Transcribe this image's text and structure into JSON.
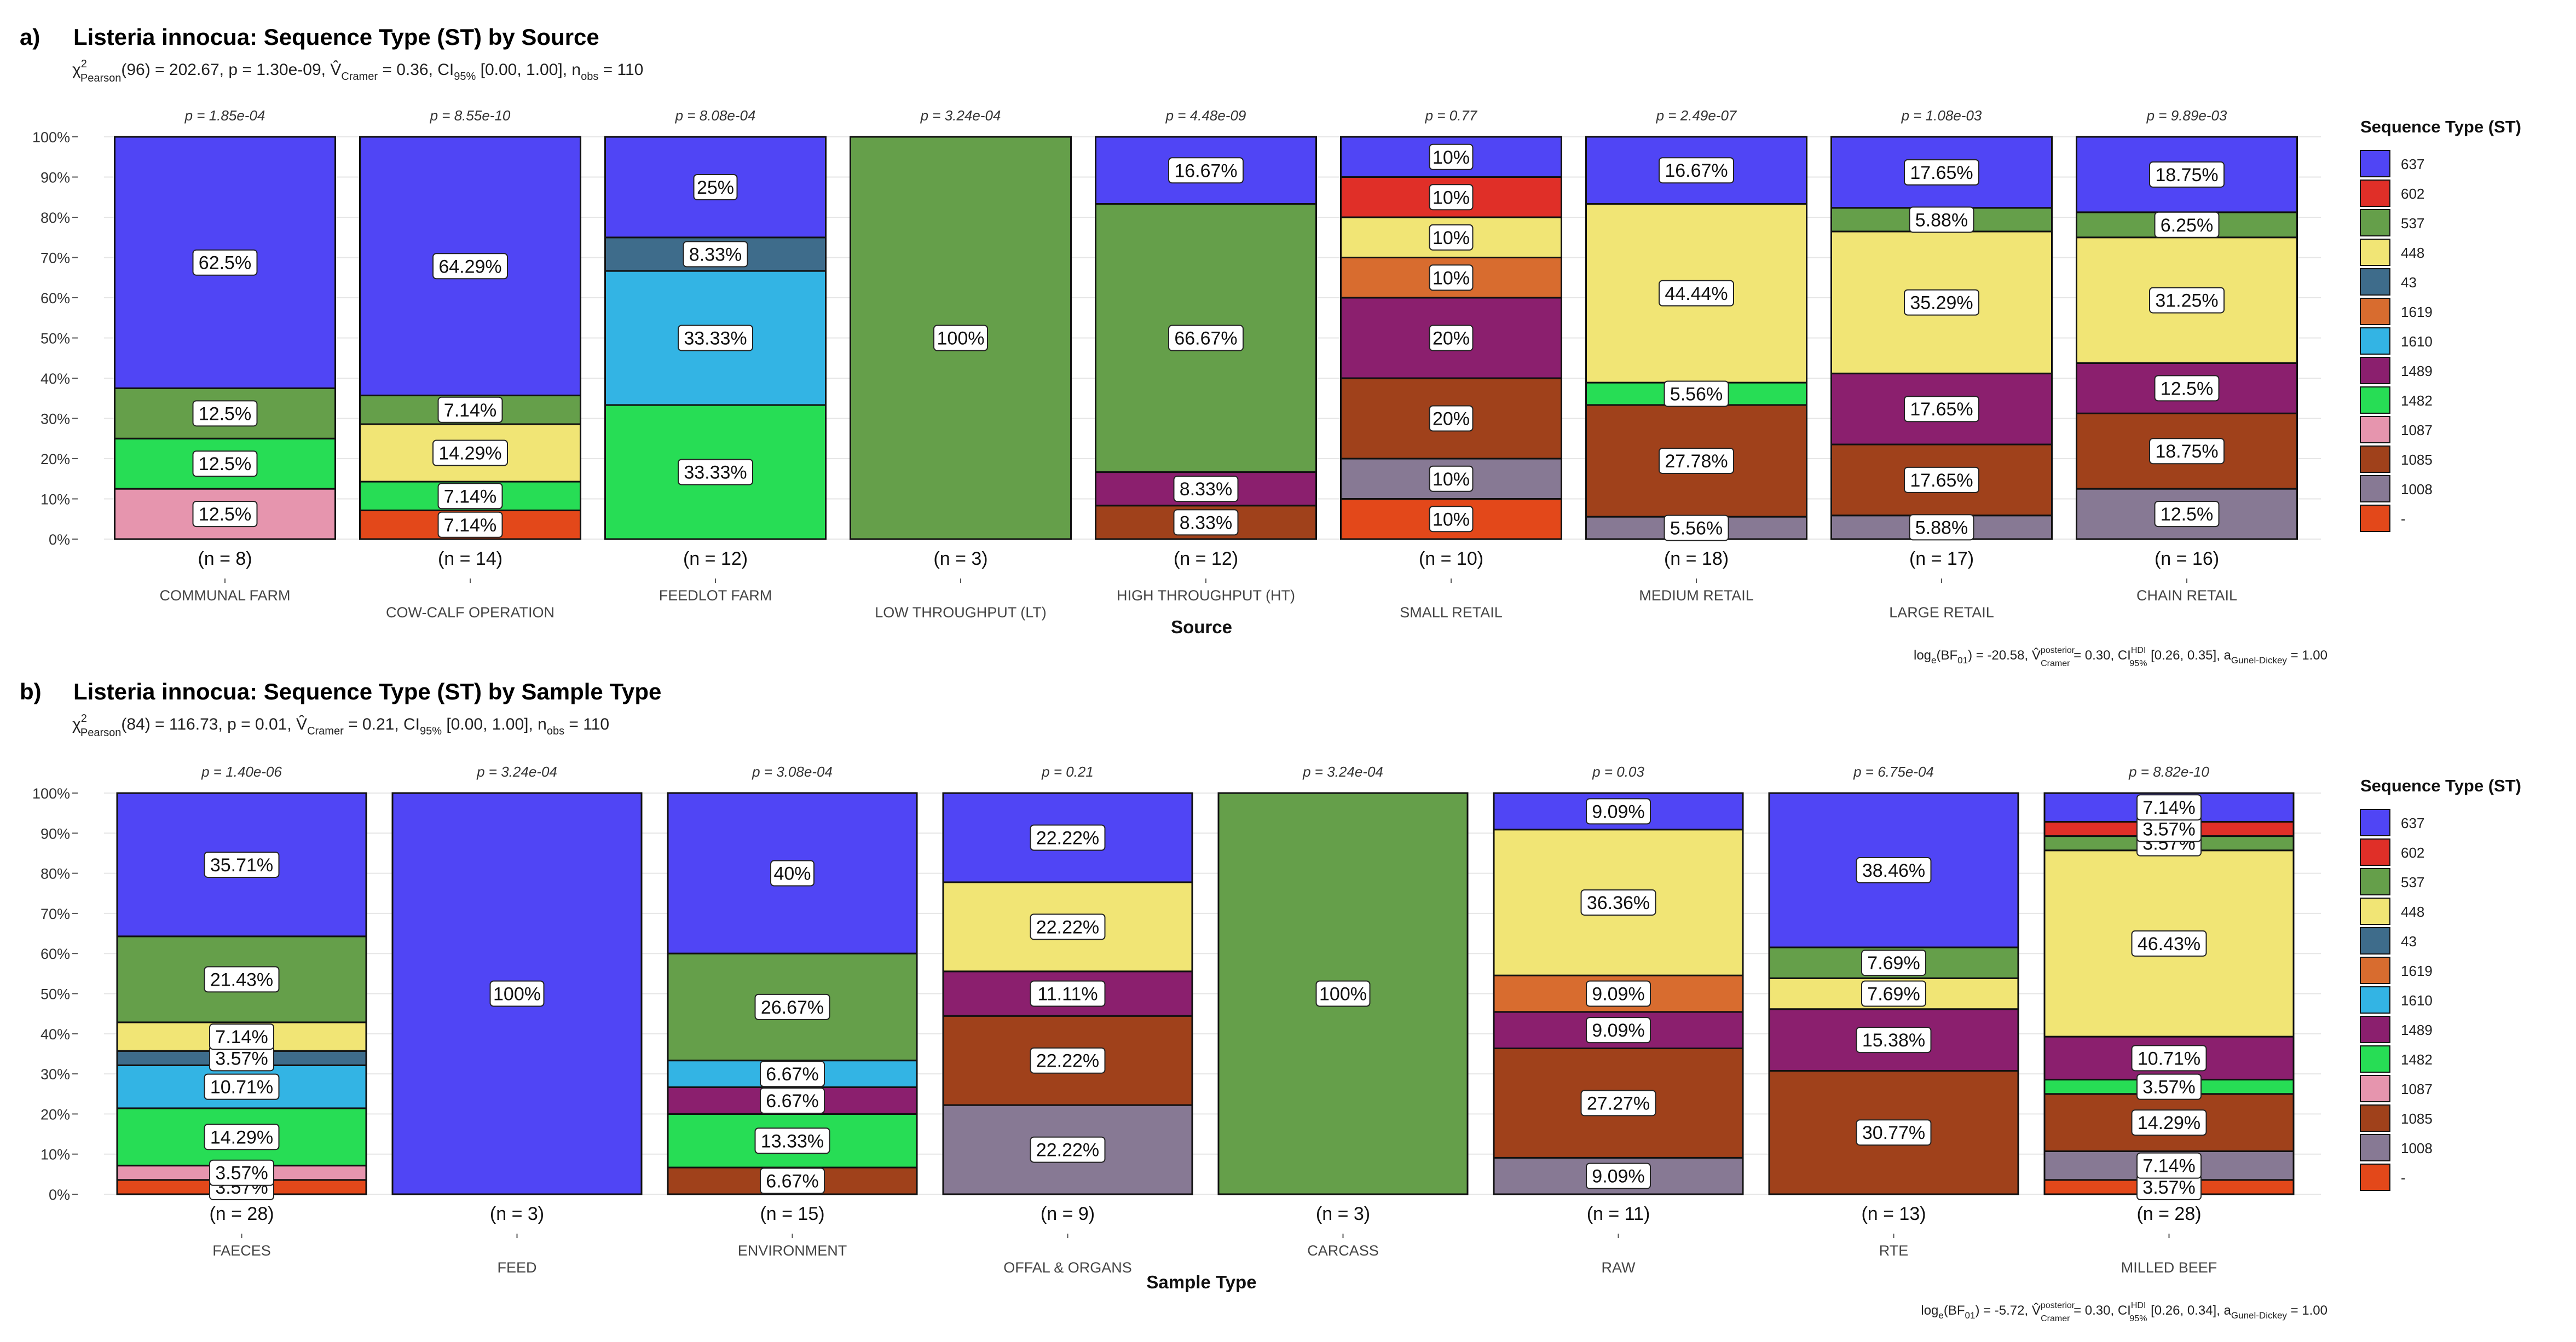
{
  "colors": {
    "637": "#5045F5",
    "602": "#E02F28",
    "537": "#659F4A",
    "448": "#F1E575",
    "43": "#3E6C8B",
    "1619": "#D86C2F",
    "1610": "#33B4E4",
    "1489": "#8B1F6E",
    "1482": "#27DD55",
    "1087": "#E695AE",
    "1085": "#A0411B",
    "1008": "#877994",
    "-": "#E3481A"
  },
  "legend": {
    "title": "Sequence Type (ST)",
    "keys": [
      "637",
      "602",
      "537",
      "448",
      "43",
      "1619",
      "1610",
      "1489",
      "1482",
      "1087",
      "1085",
      "1008",
      "-"
    ]
  },
  "chart_data": [
    {
      "type": "bar",
      "stacked": "percent",
      "panel_label": "a)",
      "title": "Listeria innocua: Sequence Type (ST) by Source",
      "subtitle": {
        "chi": "χ",
        "sup": "2",
        "sub": "Pearson",
        "main": "(96) = 202.67, p = 1.30e-09, V̂",
        "v_sub": "Cramer",
        "after_v": " = 0.36, CI",
        "ci_sub": "95%",
        "after_ci": " [0.00, 1.00], n",
        "n_sub": "obs",
        "after_n": " = 110"
      },
      "footnote": {
        "a": "log",
        "a_sub": "e",
        "b": "(BF",
        "b_sub": "01",
        "c": ") = -20.58, V̂",
        "c_sup": "posterior",
        "c_sub": "Cramer",
        "d": " = 0.30, CI",
        "d_sup": "HDI",
        "d_sub": "95%",
        "e": " [0.26, 0.35], a",
        "e_sub": "Gunel-Dickey",
        "f": " = 1.00"
      },
      "xlabel": "Source",
      "ylabel": "",
      "ylim": [
        0,
        100
      ],
      "y_ticks": [
        "0%",
        "10%",
        "20%",
        "30%",
        "40%",
        "50%",
        "60%",
        "70%",
        "80%",
        "90%",
        "100%"
      ],
      "categories": [
        "COMMUNAL FARM",
        "COW-CALF OPERATION",
        "FEEDLOT FARM",
        "LOW THROUGHPUT (LT)",
        "HIGH THROUGHPUT (HT)",
        "SMALL RETAIL",
        "MEDIUM RETAIL",
        "LARGE RETAIL",
        "CHAIN RETAIL"
      ],
      "n_labels": [
        "(n = 8)",
        "(n = 14)",
        "(n = 12)",
        "(n = 3)",
        "(n = 12)",
        "(n = 10)",
        "(n = 18)",
        "(n = 17)",
        "(n = 16)"
      ],
      "p_labels": [
        "p = 1.85e-04",
        "p = 8.55e-10",
        "p = 8.08e-04",
        "p = 3.24e-04",
        "p = 4.48e-09",
        "p = 0.77",
        "p = 2.49e-07",
        "p = 1.08e-03",
        "p = 9.89e-03"
      ],
      "stacks": [
        [
          [
            "-",
            0,
            ""
          ],
          [
            "1087",
            12.5,
            "12.5%"
          ],
          [
            "1482",
            12.5,
            "12.5%"
          ],
          [
            "537",
            12.5,
            "12.5%"
          ],
          [
            "637",
            62.5,
            "62.5%"
          ]
        ],
        [
          [
            "-",
            7.14,
            "7.14%"
          ],
          [
            "1482",
            7.14,
            "7.14%"
          ],
          [
            "448",
            14.29,
            "14.29%"
          ],
          [
            "537",
            7.14,
            "7.14%"
          ],
          [
            "637",
            64.29,
            "64.29%"
          ]
        ],
        [
          [
            "1482",
            33.33,
            "33.33%"
          ],
          [
            "1610",
            33.33,
            "33.33%"
          ],
          [
            "43",
            8.33,
            "8.33%"
          ],
          [
            "637",
            25,
            "25%"
          ]
        ],
        [
          [
            "537",
            100,
            "100%"
          ]
        ],
        [
          [
            "1085",
            8.33,
            "8.33%"
          ],
          [
            "1489",
            8.33,
            "8.33%"
          ],
          [
            "537",
            66.67,
            "66.67%"
          ],
          [
            "637",
            16.67,
            "16.67%"
          ]
        ],
        [
          [
            "-",
            10,
            "10%"
          ],
          [
            "1008",
            10,
            "10%"
          ],
          [
            "1085",
            20,
            "20%"
          ],
          [
            "1489",
            20,
            "20%"
          ],
          [
            "1619",
            10,
            "10%"
          ],
          [
            "448",
            10,
            "10%"
          ],
          [
            "602",
            10,
            "10%"
          ],
          [
            "637",
            10,
            "10%"
          ]
        ],
        [
          [
            "1008",
            5.56,
            "5.56%"
          ],
          [
            "1085",
            27.78,
            "27.78%"
          ],
          [
            "1482",
            5.56,
            "5.56%"
          ],
          [
            "448",
            44.44,
            "44.44%"
          ],
          [
            "637",
            16.67,
            "16.67%"
          ]
        ],
        [
          [
            "1008",
            5.88,
            "5.88%"
          ],
          [
            "1085",
            17.65,
            "17.65%"
          ],
          [
            "1489",
            17.65,
            "17.65%"
          ],
          [
            "448",
            35.29,
            "35.29%"
          ],
          [
            "537",
            5.88,
            "5.88%"
          ],
          [
            "637",
            17.65,
            "17.65%"
          ]
        ],
        [
          [
            "1008",
            12.5,
            "12.5%"
          ],
          [
            "1085",
            18.75,
            "18.75%"
          ],
          [
            "1489",
            12.5,
            "12.5%"
          ],
          [
            "448",
            31.25,
            "31.25%"
          ],
          [
            "537",
            6.25,
            "6.25%"
          ],
          [
            "637",
            18.75,
            "18.75%"
          ]
        ]
      ]
    },
    {
      "type": "bar",
      "stacked": "percent",
      "panel_label": "b)",
      "title": "Listeria innocua: Sequence Type (ST) by Sample Type",
      "subtitle": {
        "chi": "χ",
        "sup": "2",
        "sub": "Pearson",
        "main": "(84) = 116.73, p = 0.01, V̂",
        "v_sub": "Cramer",
        "after_v": " = 0.21, CI",
        "ci_sub": "95%",
        "after_ci": " [0.00, 1.00], n",
        "n_sub": "obs",
        "after_n": " = 110"
      },
      "footnote": {
        "a": "log",
        "a_sub": "e",
        "b": "(BF",
        "b_sub": "01",
        "c": ") = -5.72, V̂",
        "c_sup": "posterior",
        "c_sub": "Cramer",
        "d": " = 0.30, CI",
        "d_sup": "HDI",
        "d_sub": "95%",
        "e": " [0.26, 0.34], a",
        "e_sub": "Gunel-Dickey",
        "f": " = 1.00"
      },
      "xlabel": "Sample Type",
      "ylabel": "",
      "ylim": [
        0,
        100
      ],
      "y_ticks": [
        "0%",
        "10%",
        "20%",
        "30%",
        "40%",
        "50%",
        "60%",
        "70%",
        "80%",
        "90%",
        "100%"
      ],
      "categories": [
        "FAECES",
        "FEED",
        "ENVIRONMENT",
        "OFFAL & ORGANS",
        "CARCASS",
        "RAW",
        "RTE",
        "MILLED BEEF"
      ],
      "n_labels": [
        "(n = 28)",
        "(n = 3)",
        "(n = 15)",
        "(n = 9)",
        "(n = 3)",
        "(n = 11)",
        "(n = 13)",
        "(n = 28)"
      ],
      "p_labels": [
        "p = 1.40e-06",
        "p = 3.24e-04",
        "p = 3.08e-04",
        "p = 0.21",
        "p = 3.24e-04",
        "p = 0.03",
        "p = 6.75e-04",
        "p = 8.82e-10"
      ],
      "stacks": [
        [
          [
            "-",
            3.57,
            "3.57%"
          ],
          [
            "1087",
            3.57,
            "3.57%"
          ],
          [
            "1482",
            14.29,
            "14.29%"
          ],
          [
            "1610",
            10.71,
            "10.71%"
          ],
          [
            "43",
            3.57,
            "3.57%"
          ],
          [
            "448",
            7.14,
            "7.14%"
          ],
          [
            "537",
            21.43,
            "21.43%"
          ],
          [
            "637",
            35.71,
            "35.71%"
          ]
        ],
        [
          [
            "637",
            100,
            "100%"
          ]
        ],
        [
          [
            "1085",
            6.67,
            "6.67%"
          ],
          [
            "1482",
            13.33,
            "13.33%"
          ],
          [
            "1489",
            6.67,
            "6.67%"
          ],
          [
            "1610",
            6.67,
            "6.67%"
          ],
          [
            "537",
            26.67,
            "26.67%"
          ],
          [
            "637",
            40,
            "40%"
          ]
        ],
        [
          [
            "1008",
            22.22,
            "22.22%"
          ],
          [
            "1085",
            22.22,
            "22.22%"
          ],
          [
            "1489",
            11.11,
            "11.11%"
          ],
          [
            "448",
            22.22,
            "22.22%"
          ],
          [
            "637",
            22.22,
            "22.22%"
          ]
        ],
        [
          [
            "537",
            100,
            "100%"
          ]
        ],
        [
          [
            "1008",
            9.09,
            "9.09%"
          ],
          [
            "1085",
            27.27,
            "27.27%"
          ],
          [
            "1489",
            9.09,
            "9.09%"
          ],
          [
            "1619",
            9.09,
            "9.09%"
          ],
          [
            "448",
            36.36,
            "36.36%"
          ],
          [
            "637",
            9.09,
            "9.09%"
          ]
        ],
        [
          [
            "1085",
            30.77,
            "30.77%"
          ],
          [
            "1489",
            15.38,
            "15.38%"
          ],
          [
            "448",
            7.69,
            "7.69%"
          ],
          [
            "537",
            7.69,
            "7.69%"
          ],
          [
            "637",
            38.46,
            "38.46%"
          ]
        ],
        [
          [
            "-",
            3.57,
            "3.57%"
          ],
          [
            "1008",
            7.14,
            "7.14%"
          ],
          [
            "1085",
            14.29,
            "14.29%"
          ],
          [
            "1482",
            3.57,
            "3.57%"
          ],
          [
            "1489",
            10.71,
            "10.71%"
          ],
          [
            "448",
            46.43,
            "46.43%"
          ],
          [
            "537",
            3.57,
            "3.57%"
          ],
          [
            "602",
            3.57,
            "3.57%"
          ],
          [
            "637",
            7.14,
            "7.14%"
          ]
        ]
      ]
    }
  ]
}
